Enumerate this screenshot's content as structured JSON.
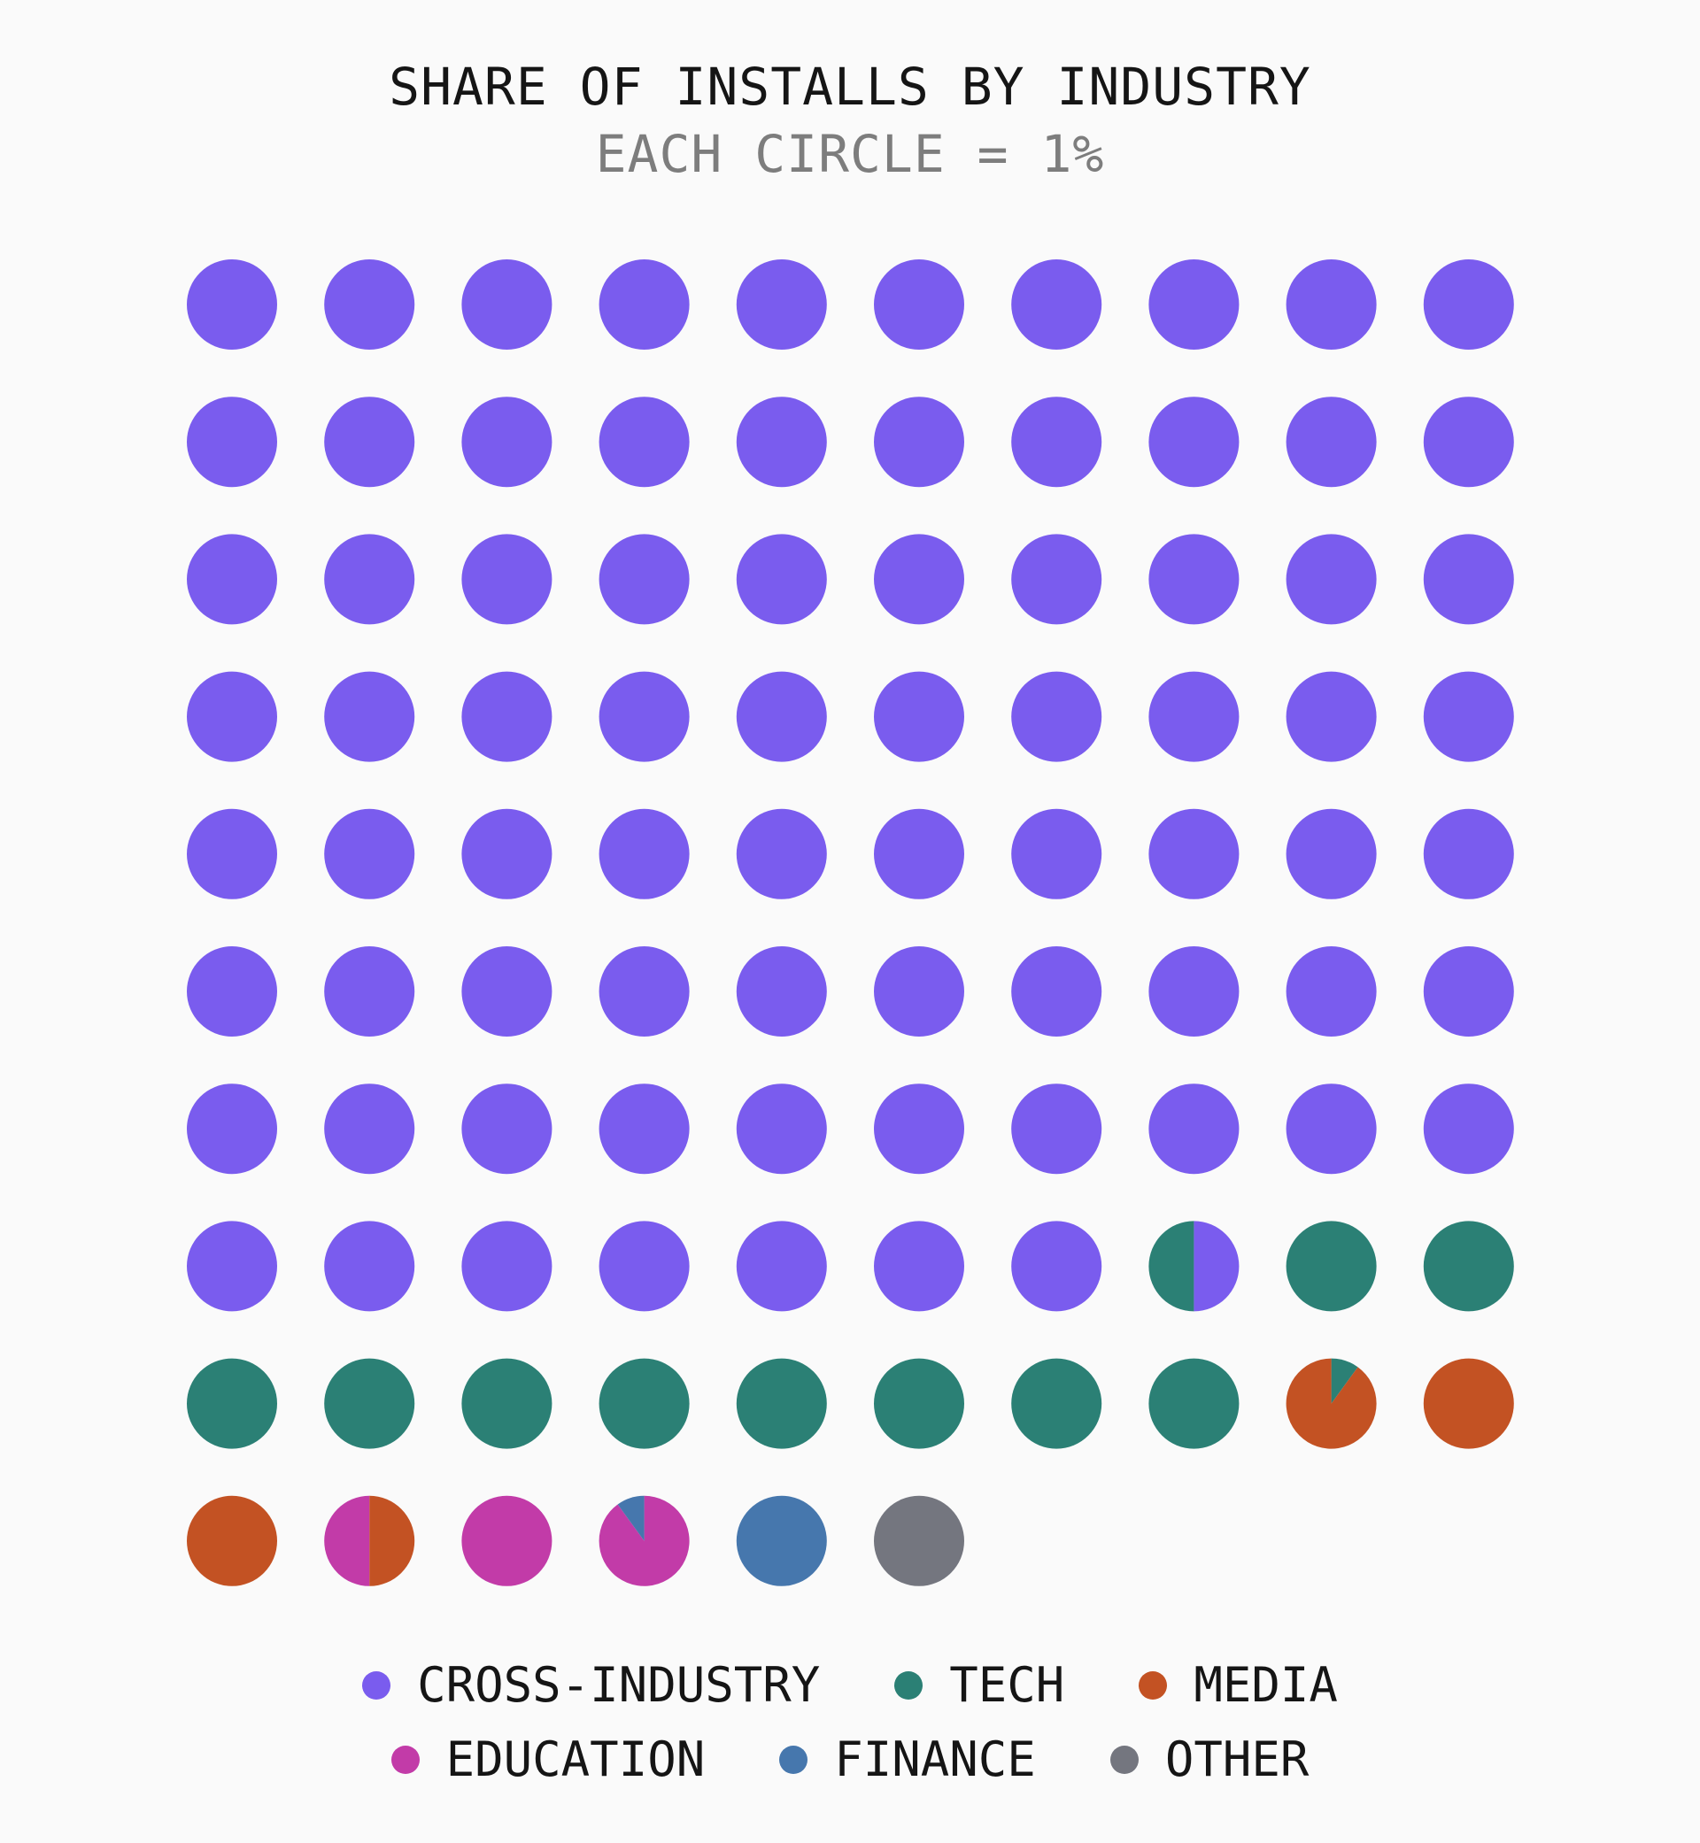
{
  "chart_data": {
    "type": "waffle",
    "title": "SHARE OF INSTALLS BY INDUSTRY",
    "subtitle": "EACH CIRCLE = 1%",
    "grid": {
      "rows": 10,
      "cols": 10
    },
    "unit_percent": 1,
    "series": [
      {
        "name": "CROSS-INDUSTRY",
        "value": 77.5,
        "color": "#7a5cee"
      },
      {
        "name": "TECH",
        "value": 10.6,
        "color": "#2b8075"
      },
      {
        "name": "MEDIA",
        "value": 3.4,
        "color": "#c35223"
      },
      {
        "name": "EDUCATION",
        "value": 2.4,
        "color": "#c23ba8"
      },
      {
        "name": "FINANCE",
        "value": 1.1,
        "color": "#4677ad"
      },
      {
        "name": "OTHER",
        "value": 1.0,
        "color": "#74767f"
      }
    ],
    "legend_position": "bottom"
  }
}
